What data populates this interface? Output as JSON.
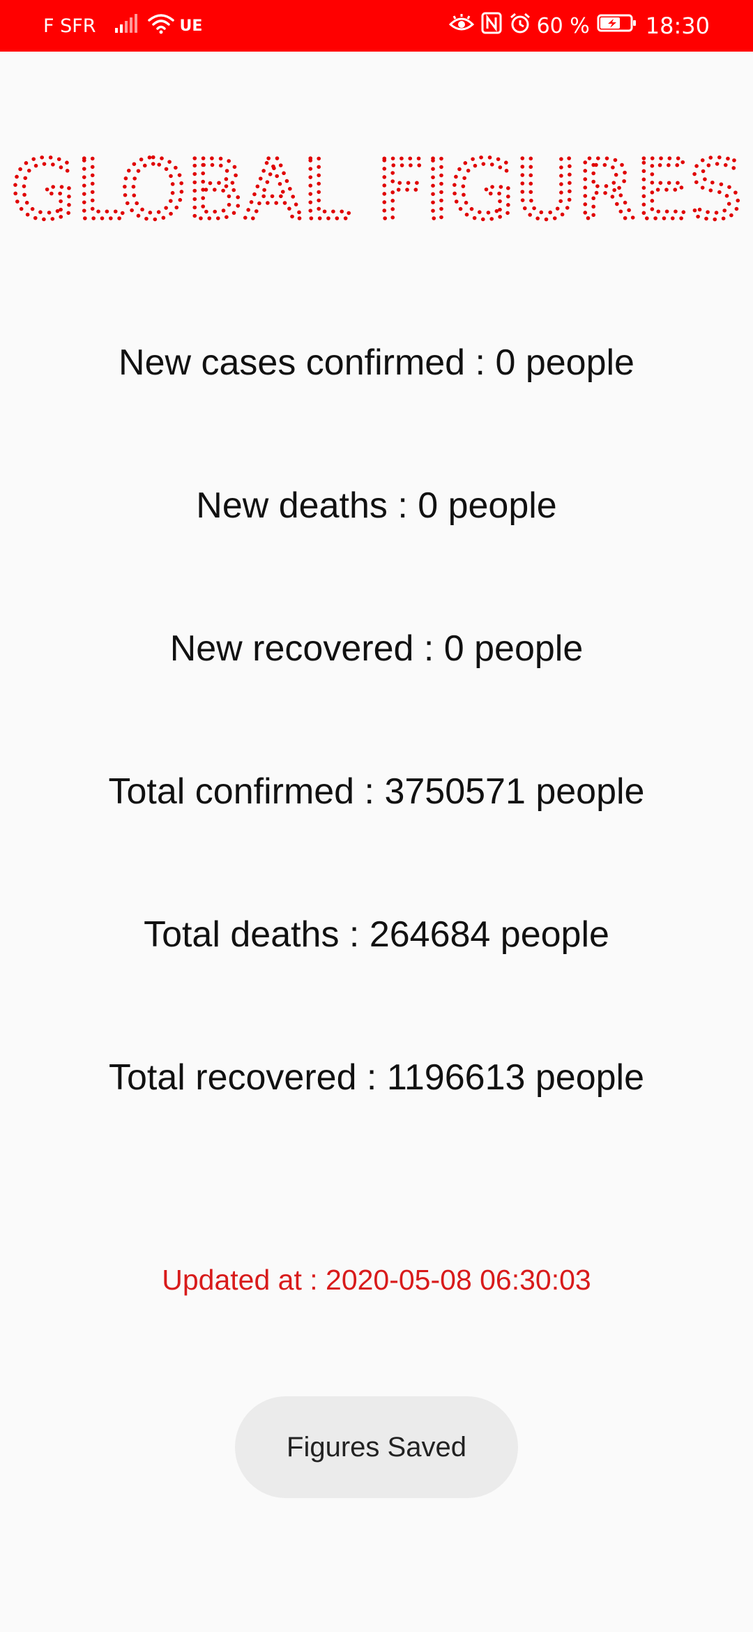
{
  "status_bar": {
    "carrier": "F SFR",
    "network_type": "UE",
    "battery_percent": "60 %",
    "time": "18:30",
    "icons": [
      "signal-icon",
      "wifi-icon",
      "eye-comfort-icon",
      "nfc-icon",
      "alarm-icon",
      "battery-charging-icon"
    ],
    "background_color": "#ff0000"
  },
  "title": {
    "text": "GLOBAL FIGURES",
    "color": "#e00000"
  },
  "stats": {
    "new_confirmed": "New cases confirmed : 0 people",
    "new_deaths": "New deaths : 0 people",
    "new_recovered": "New recovered : 0 people",
    "total_confirmed": "Total confirmed : 3750571 people",
    "total_deaths": "Total deaths : 264684 people",
    "total_recovered": "Total recovered : 1196613 people"
  },
  "updated_at": "Updated at : 2020-05-08 06:30:03",
  "toast": {
    "message": "Figures Saved"
  }
}
